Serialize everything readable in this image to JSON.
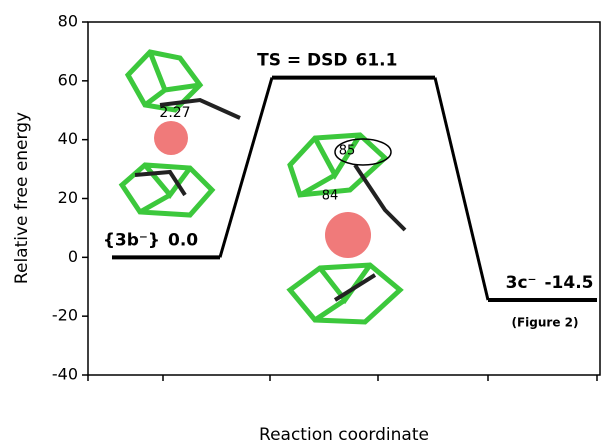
{
  "chart_data": {
    "type": "energy_profile",
    "y_label": "Relative free energy",
    "x_label": "Reaction coordinate",
    "states": [
      "{3b⁻}",
      "TS = DSD",
      "3c⁻"
    ],
    "values": [
      0.0,
      61.1,
      -14.5
    ],
    "value_labels": [
      "0.0",
      "61.1",
      "-14.5"
    ],
    "color": "#000000",
    "note": "(Figure 2)",
    "annotations": [
      "2.27",
      "85",
      "84"
    ],
    "ylim": [
      -40,
      80
    ],
    "yticks": [
      -40,
      -20,
      0,
      20,
      40,
      60,
      80
    ]
  }
}
